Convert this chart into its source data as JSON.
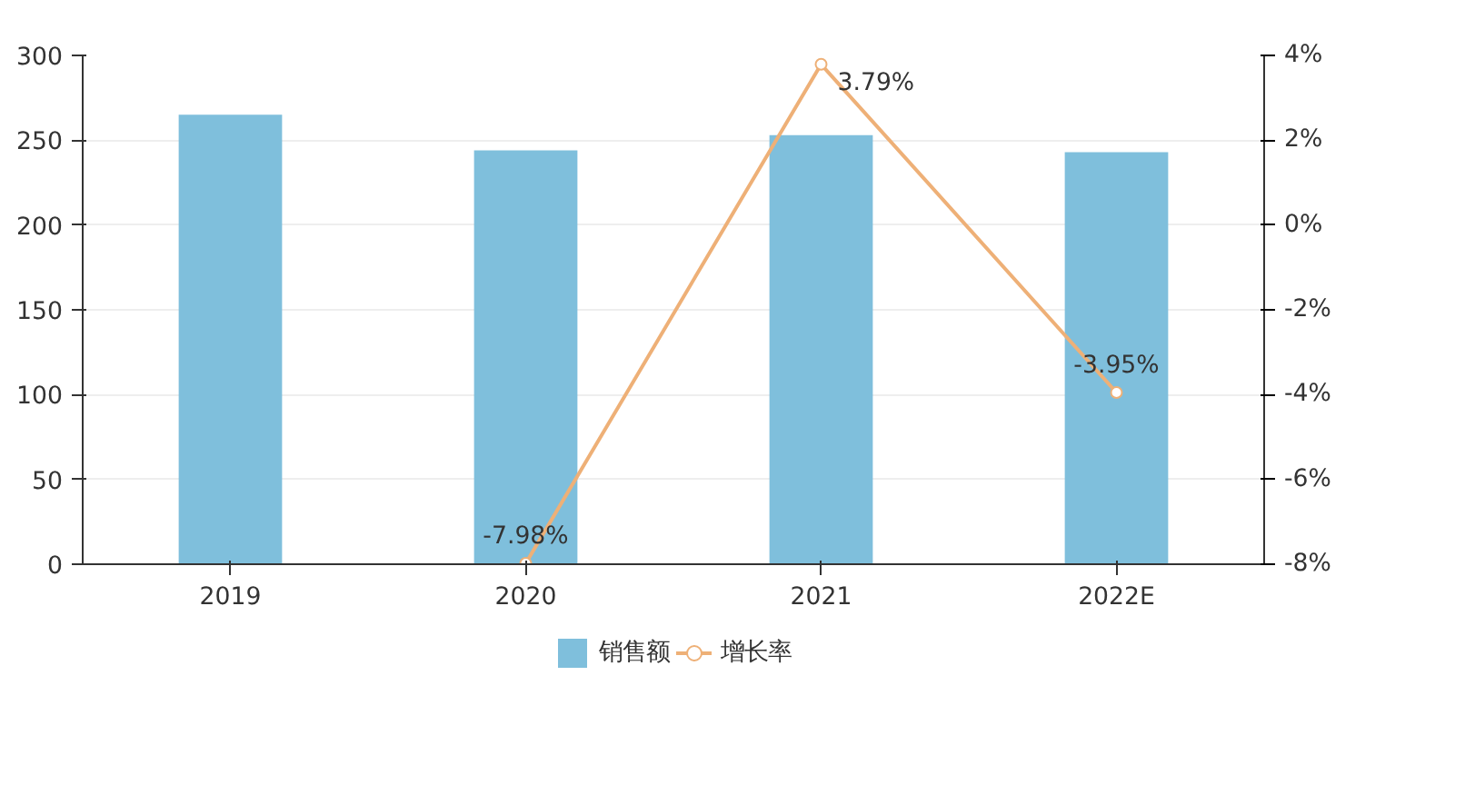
{
  "chart_data": {
    "type": "bar",
    "categories": [
      "2019",
      "2020",
      "2021",
      "2022E"
    ],
    "series": [
      {
        "name": "销售额",
        "color": "#7fbfdc",
        "values": [
          265,
          244,
          253,
          243
        ]
      },
      {
        "name": "增长率",
        "type": "line",
        "axis": "y2",
        "color": "#eeb077",
        "marker": "circle",
        "values": [
          null,
          -7.98,
          3.79,
          -3.95
        ],
        "value_labels": [
          null,
          "-7.98%",
          "3.79%",
          "-3.95%"
        ]
      }
    ],
    "ylim": [
      0,
      300
    ],
    "yticks": [
      0,
      50,
      100,
      150,
      200,
      250,
      300
    ],
    "y2lim": [
      -8,
      4
    ],
    "y2ticks": [
      {
        "value": -8,
        "label": "-8%"
      },
      {
        "value": -6,
        "label": "-6%"
      },
      {
        "value": -4,
        "label": "-4%"
      },
      {
        "value": -2,
        "label": "-2%"
      },
      {
        "value": 0,
        "label": "0%"
      },
      {
        "value": 2,
        "label": "2%"
      },
      {
        "value": 4,
        "label": "4%"
      }
    ],
    "grid": "y",
    "legend": "bottom"
  }
}
